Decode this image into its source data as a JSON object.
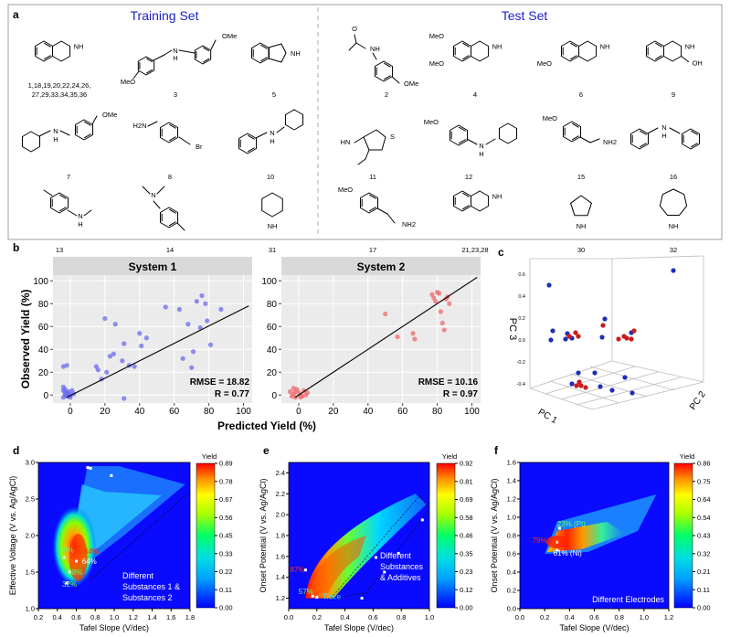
{
  "panel_a": {
    "letter": "a",
    "training_title": "Training Set",
    "test_title": "Test Set",
    "training_compounds": [
      {
        "label": "1,18,19,20,22,24,26,",
        "label2": "27,29,33,34,35,36",
        "shape": "tetrahydroisoquinoline"
      },
      {
        "label": "3",
        "shape": "bis-methoxy-amine"
      },
      {
        "label": "5",
        "shape": "isoindoline"
      },
      {
        "label": "7",
        "shape": "cyclohexyl-methoxybenzylamine"
      },
      {
        "label": "8",
        "shape": "bromomethyl-benzylamine"
      },
      {
        "label": "10",
        "shape": "benzyl-cyclohexylamine"
      },
      {
        "label": "13",
        "shape": "n-methyl-toluidine"
      },
      {
        "label": "14",
        "shape": "dimethyl-toluidine"
      },
      {
        "label": "31",
        "shape": "piperidine"
      }
    ],
    "test_compounds": [
      {
        "label": "2",
        "shape": "acetamide"
      },
      {
        "label": "4",
        "shape": "dimethoxy-thiq"
      },
      {
        "label": "6",
        "shape": "methoxy-thiq"
      },
      {
        "label": "9",
        "shape": "thiq-methanol"
      },
      {
        "label": "11",
        "shape": "thiophene-amine"
      },
      {
        "label": "12",
        "shape": "methoxybenzyl-cyclohexylamine"
      },
      {
        "label": "15",
        "shape": "methoxybenzylamine"
      },
      {
        "label": "16",
        "shape": "dibenzylamine"
      },
      {
        "label": "17",
        "shape": "methoxyphenethylamine"
      },
      {
        "label": "21,23,28",
        "shape": "tetrahydroisoquinoline"
      },
      {
        "label": "30",
        "shape": "pyrrolidine"
      },
      {
        "label": "32",
        "shape": "azepane"
      }
    ],
    "atom_labels": {
      "nh": "NH",
      "h": "H",
      "n": "N",
      "ome": "OMe",
      "meo": "MeO",
      "h2n": "H2N",
      "nh2": "NH2",
      "br": "Br",
      "oh": "OH",
      "s": "S",
      "hn": "HN",
      "o": "O"
    }
  },
  "chart_data": [
    {
      "id": "b1",
      "panel": "b",
      "type": "scatter",
      "title": "System 1",
      "xlabel": "Predicted Yield (%)",
      "ylabel": "Observed Yield (%)",
      "xlim": [
        -10,
        105
      ],
      "ylim": [
        -7,
        105
      ],
      "xticks": [
        0,
        20,
        40,
        60,
        80,
        100
      ],
      "yticks": [
        0,
        20,
        40,
        60,
        80,
        100
      ],
      "color": "#6b6bf0",
      "fit_line": [
        [
          -2,
          -2
        ],
        [
          103,
          78
        ]
      ],
      "annotations": [
        "RMSE = 18.82",
        "R = 0.77"
      ],
      "points": [
        [
          -3,
          0
        ],
        [
          -2,
          2
        ],
        [
          -4,
          4
        ],
        [
          -1,
          1
        ],
        [
          -2,
          -1
        ],
        [
          -3,
          5
        ],
        [
          -1,
          3
        ],
        [
          -4,
          -2
        ],
        [
          0,
          0
        ],
        [
          -2,
          26
        ],
        [
          -4,
          25
        ],
        [
          1,
          4
        ],
        [
          -1,
          -1
        ],
        [
          -3,
          2
        ],
        [
          2,
          1
        ],
        [
          0,
          -2
        ],
        [
          -4,
          7
        ],
        [
          15,
          25
        ],
        [
          16,
          22
        ],
        [
          18,
          14
        ],
        [
          20,
          67
        ],
        [
          21,
          20
        ],
        [
          23,
          34
        ],
        [
          25,
          36
        ],
        [
          26,
          62
        ],
        [
          30,
          30
        ],
        [
          31,
          45
        ],
        [
          34,
          26
        ],
        [
          37,
          25
        ],
        [
          40,
          54
        ],
        [
          41,
          43
        ],
        [
          44,
          50
        ],
        [
          31,
          -3
        ],
        [
          55,
          77
        ],
        [
          63,
          75
        ],
        [
          65,
          32
        ],
        [
          68,
          62
        ],
        [
          70,
          24
        ],
        [
          71,
          38
        ],
        [
          73,
          82
        ],
        [
          76,
          87
        ],
        [
          78,
          80
        ],
        [
          79,
          65
        ],
        [
          81,
          44
        ],
        [
          87,
          75
        ],
        [
          75,
          59
        ]
      ]
    },
    {
      "id": "b2",
      "panel": "b",
      "type": "scatter",
      "title": "System 2",
      "xlabel": "Predicted Yield (%)",
      "ylabel": "Observed Yield (%)",
      "xlim": [
        -10,
        105
      ],
      "ylim": [
        -7,
        105
      ],
      "xticks": [
        0,
        20,
        40,
        60,
        80,
        100
      ],
      "yticks": [
        0,
        20,
        40,
        60,
        80,
        100
      ],
      "color": "#f06a6a",
      "fit_line": [
        [
          -2,
          -2
        ],
        [
          103,
          103
        ]
      ],
      "annotations": [
        "RMSE = 10.16",
        "R = 0.97"
      ],
      "points": [
        [
          -3,
          1
        ],
        [
          -2,
          3
        ],
        [
          -4,
          -1
        ],
        [
          -1,
          5
        ],
        [
          0,
          2
        ],
        [
          -3,
          6
        ],
        [
          1,
          0
        ],
        [
          -5,
          3
        ],
        [
          2,
          -1
        ],
        [
          3,
          4
        ],
        [
          4,
          0
        ],
        [
          5,
          2
        ],
        [
          1,
          -2
        ],
        [
          -2,
          -2
        ],
        [
          50,
          71
        ],
        [
          57,
          51
        ],
        [
          66,
          54
        ],
        [
          67,
          49
        ],
        [
          77,
          88
        ],
        [
          78,
          85
        ],
        [
          79,
          82
        ],
        [
          80,
          90
        ],
        [
          81,
          89
        ],
        [
          82,
          73
        ],
        [
          83,
          63
        ],
        [
          84,
          57
        ],
        [
          85,
          84
        ],
        [
          86,
          86
        ],
        [
          87,
          80
        ]
      ]
    },
    {
      "id": "c",
      "panel": "c",
      "type": "scatter",
      "title": "",
      "xlabel": "PC 1",
      "ylabel": "PC 2",
      "zlabel": "PC 3",
      "zticks": [
        "0.6",
        "0.4",
        "0.2",
        "0.0",
        "-0.2",
        "-0.4"
      ],
      "series": [
        {
          "color": "#1d2fb8"
        },
        {
          "color": "#cc1a1a"
        }
      ]
    },
    {
      "id": "d",
      "panel": "d",
      "type": "heatmap",
      "xlabel": "Tafel Slope (V/dec)",
      "ylabel": "Effective Voltage (V vs. Ag/AgCl)",
      "xlim": [
        0.2,
        1.8
      ],
      "ylim": [
        1.0,
        3.0
      ],
      "xticks": [
        "0.2",
        "0.4",
        "0.6",
        "0.8",
        "1.0",
        "1.2",
        "1.4",
        "1.6",
        "1.8"
      ],
      "yticks": [
        "1.0",
        "1.5",
        "2.0",
        "2.5",
        "3.0"
      ],
      "colorbar": {
        "title": "Yield",
        "ticks": [
          "0.89",
          "0.78",
          "0.67",
          "0.56",
          "0.45",
          "0.33",
          "0.22",
          "0.11",
          "0.00"
        ]
      },
      "point_labels": [
        "58%",
        "84%",
        "64%",
        "38%",
        "32%"
      ],
      "legend_text": [
        "Different",
        "Substances 1 &",
        "Substances 2"
      ]
    },
    {
      "id": "e",
      "panel": "e",
      "type": "heatmap",
      "xlabel": "Tafel Slope (V/dec)",
      "ylabel": "Onset Potential (V vs. Ag/AgCl)",
      "xlim": [
        0.0,
        1.0
      ],
      "ylim": [
        1.1,
        2.5
      ],
      "xticks": [
        "0.0",
        "0.2",
        "0.4",
        "0.6",
        "0.8",
        "1.0"
      ],
      "yticks": [
        "1.2",
        "1.4",
        "1.6",
        "1.8",
        "2.0",
        "2.2",
        "2.4"
      ],
      "colorbar": {
        "title": "Yield",
        "ticks": [
          "0.92",
          "0.81",
          "0.69",
          "0.58",
          "0.46",
          "0.35",
          "0.23",
          "0.12",
          "0.00"
        ]
      },
      "point_labels": [
        "87%",
        "57%",
        "Trace"
      ],
      "legend_text": [
        "Different",
        "Substances",
        "& Additives"
      ]
    },
    {
      "id": "f",
      "panel": "f",
      "type": "heatmap",
      "xlabel": "Tafel Slope (V/dec)",
      "ylabel": "Onset Potential (V vs. Ag/AgCl)",
      "xlim": [
        0.0,
        1.2
      ],
      "ylim": [
        0.0,
        1.6
      ],
      "xticks": [
        "0.0",
        "0.2",
        "0.4",
        "0.6",
        "0.8",
        "1.0",
        "1.2"
      ],
      "yticks": [
        "0.0",
        "0.2",
        "0.4",
        "0.6",
        "0.8",
        "1.0",
        "1.2",
        "1.4",
        "1.6"
      ],
      "colorbar": {
        "title": "Yield",
        "ticks": [
          "0.86",
          "0.75",
          "0.64",
          "0.54",
          "0.43",
          "0.32",
          "0.21",
          "0.11",
          "0.00"
        ]
      },
      "point_labels": [
        "23% (Pt)",
        "79% (GC)",
        "61% (Ni)"
      ],
      "legend_text": [
        "Different Electrodes"
      ]
    }
  ],
  "panel_letters": {
    "b": "b",
    "c": "c",
    "d": "d",
    "e": "e",
    "f": "f"
  }
}
